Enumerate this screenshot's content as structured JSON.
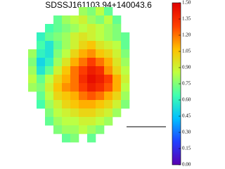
{
  "chart_data": {
    "type": "heatmap",
    "title": "SDSSJ161103.94+140043.6",
    "colormap": [
      "#5a00b0",
      "#2040ff",
      "#00c0ff",
      "#40ffb0",
      "#c0ff40",
      "#ffc000",
      "#ff4000",
      "#e00000"
    ],
    "zlim": [
      0,
      1.5
    ],
    "zticks": [
      {
        "value": 0,
        "label": "0.00"
      },
      {
        "value": 0.15,
        "label": "0.15"
      },
      {
        "value": 0.3,
        "label": "0.30"
      },
      {
        "value": 0.45,
        "label": "0.45"
      },
      {
        "value": 0.6,
        "label": "0.60"
      },
      {
        "value": 0.75,
        "label": "0.75"
      },
      {
        "value": 0.9,
        "label": "0.90"
      },
      {
        "value": 1.05,
        "label": "1.05"
      },
      {
        "value": 1.2,
        "label": "1.20"
      },
      {
        "value": 1.35,
        "label": "1.35"
      },
      {
        "value": 1.5,
        "label": "1.50"
      }
    ],
    "z": [
      [
        null,
        null,
        null,
        null,
        null,
        null,
        0.8,
        0.75,
        0.85,
        0.7,
        null,
        null
      ],
      [
        null,
        null,
        null,
        0.7,
        0.8,
        0.85,
        0.9,
        0.8,
        0.75,
        0.85,
        0.7,
        null
      ],
      [
        null,
        null,
        0.65,
        0.7,
        0.75,
        0.8,
        0.85,
        0.9,
        0.85,
        0.8,
        0.75,
        null
      ],
      [
        null,
        0.6,
        0.7,
        0.75,
        0.8,
        0.9,
        0.95,
        0.9,
        0.85,
        0.8,
        0.75,
        0.7
      ],
      [
        null,
        0.65,
        0.55,
        0.7,
        0.8,
        0.9,
        1.0,
        1.05,
        0.95,
        0.9,
        0.85,
        0.7
      ],
      [
        0.8,
        0.6,
        0.55,
        0.75,
        0.85,
        1.0,
        1.1,
        1.15,
        1.05,
        1.0,
        0.9,
        0.75
      ],
      [
        0.75,
        0.5,
        0.6,
        0.8,
        0.95,
        1.1,
        1.2,
        1.3,
        1.2,
        1.1,
        0.95,
        0.8
      ],
      [
        0.8,
        0.55,
        0.7,
        0.9,
        1.05,
        1.2,
        1.3,
        1.4,
        1.35,
        1.15,
        1.0,
        0.85
      ],
      [
        0.85,
        0.7,
        0.85,
        1.0,
        1.1,
        1.2,
        1.35,
        1.45,
        1.4,
        1.3,
        1.1,
        0.9
      ],
      [
        0.8,
        0.75,
        0.9,
        1.05,
        1.15,
        1.2,
        1.3,
        1.4,
        1.35,
        1.25,
        1.1,
        0.85
      ],
      [
        null,
        0.7,
        0.85,
        1.0,
        1.05,
        1.1,
        1.2,
        1.25,
        1.2,
        1.1,
        1.0,
        0.8
      ],
      [
        null,
        0.65,
        0.8,
        0.9,
        1.0,
        1.05,
        1.1,
        1.1,
        1.05,
        1.0,
        0.9,
        0.75
      ],
      [
        null,
        null,
        0.75,
        0.85,
        0.9,
        0.95,
        1.0,
        1.0,
        0.95,
        0.9,
        0.8,
        null
      ],
      [
        null,
        null,
        0.7,
        0.8,
        0.85,
        0.85,
        0.9,
        0.9,
        0.85,
        0.8,
        null,
        null
      ],
      [
        null,
        null,
        null,
        0.75,
        0.8,
        0.8,
        0.85,
        0.8,
        0.75,
        null,
        null,
        null
      ],
      [
        null,
        null,
        null,
        null,
        0.7,
        0.75,
        null,
        0.7,
        null,
        null,
        null,
        null
      ]
    ]
  }
}
